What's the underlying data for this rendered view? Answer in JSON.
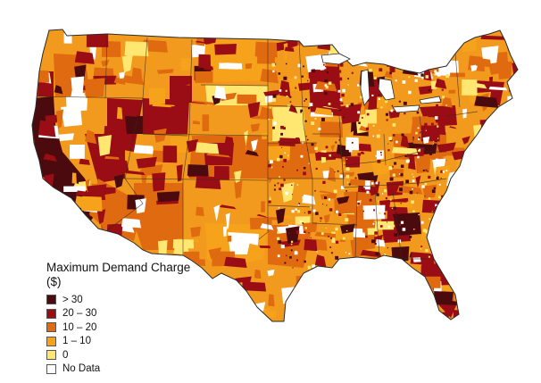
{
  "map": {
    "legend": {
      "title": "Maximum Demand Charge ($)",
      "items": [
        {
          "label": "> 30",
          "color": "#4a0a0e"
        },
        {
          "label": "20 – 30",
          "color": "#9a0d14"
        },
        {
          "label": "10 – 20",
          "color": "#e06a10"
        },
        {
          "label": "1 – 10",
          "color": "#f7a21b"
        },
        {
          "label": "0",
          "color": "#ffe772"
        },
        {
          "label": "No Data",
          "color": "#ffffff"
        }
      ]
    },
    "colors": {
      "border": "#333333",
      "base": "#f29a1e"
    }
  }
}
